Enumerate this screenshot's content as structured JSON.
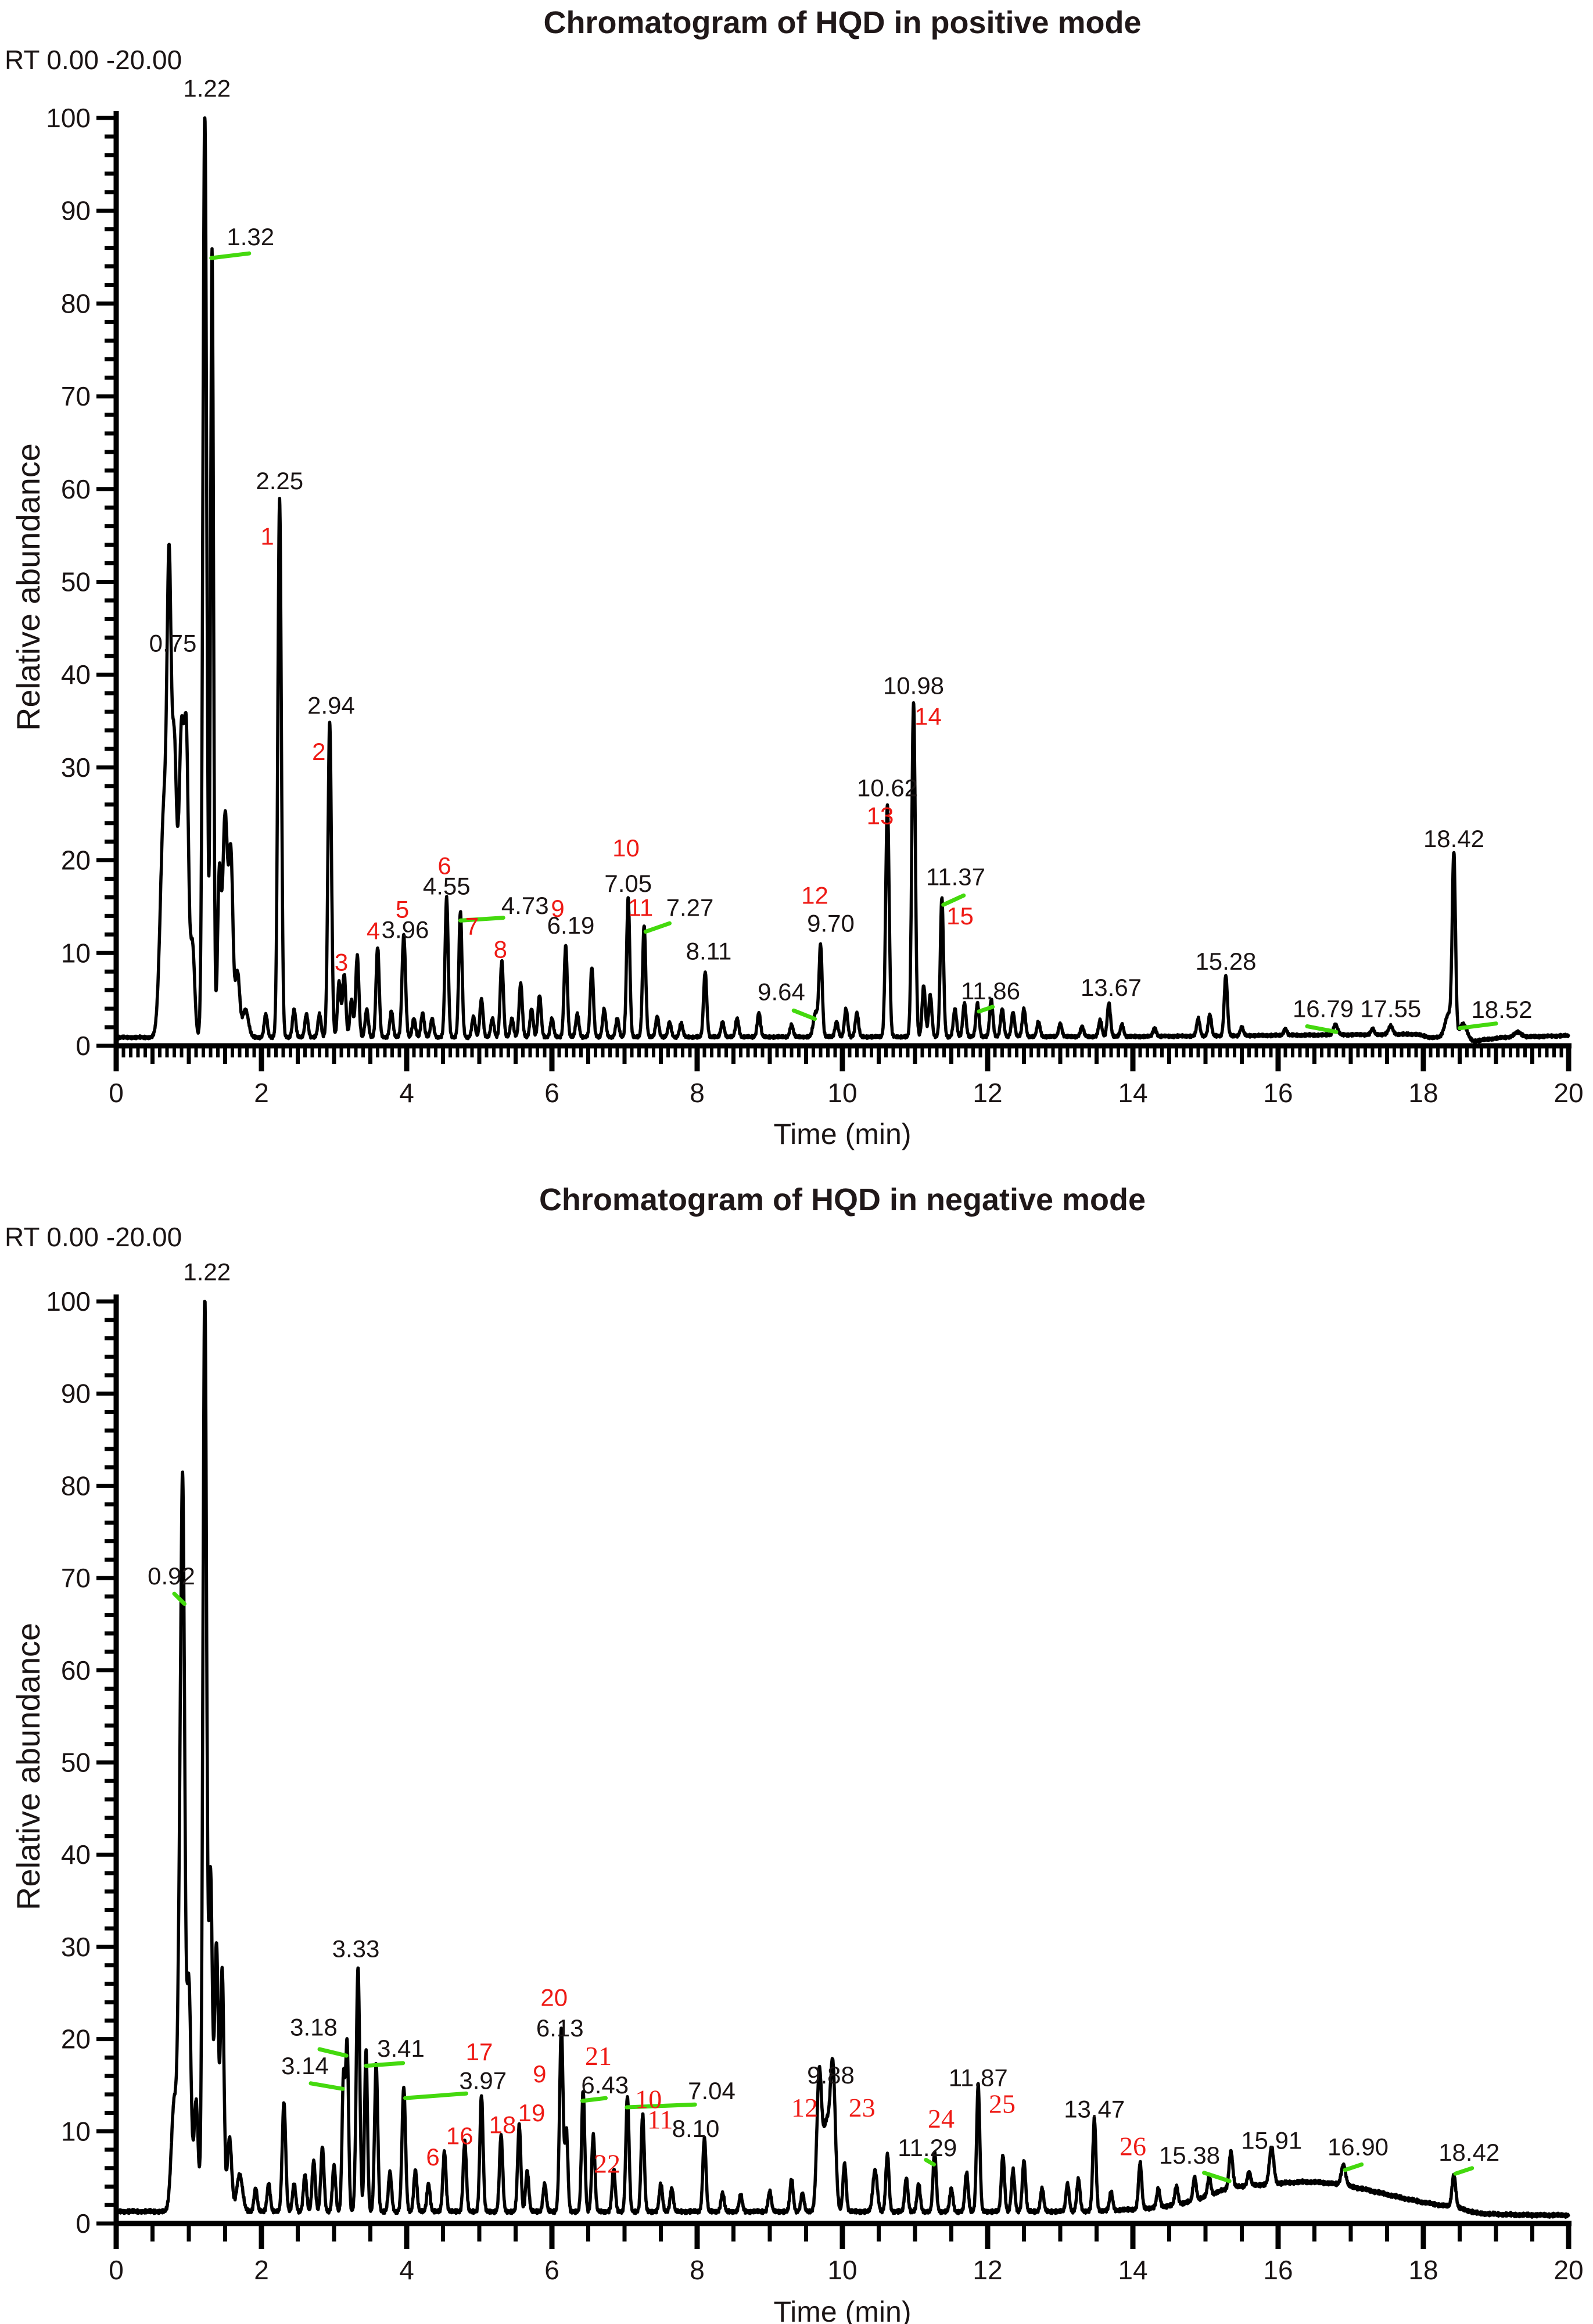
{
  "colors": {
    "trace": "#000000",
    "axis": "#000000",
    "text": "#1a1414",
    "peak_number_red": "#ee1a15",
    "green_leader": "#44d90e"
  },
  "chart_data": [
    {
      "type": "line",
      "id": "positive-mode",
      "title": "Chromatogram of HQD in positive mode",
      "range_label": "RT 0.00 -20.00",
      "xlabel": "Time (min)",
      "ylabel": "Relative abundance",
      "xlim": [
        0,
        20
      ],
      "ylim": [
        0,
        100
      ],
      "xticks": [
        0,
        2,
        4,
        6,
        8,
        10,
        12,
        14,
        16,
        18,
        20
      ],
      "yticks": [
        0,
        10,
        20,
        30,
        40,
        50,
        60,
        70,
        80,
        90,
        100
      ],
      "grid": false,
      "noise": 0.22,
      "seed": 3.1,
      "baseline": [
        [
          0,
          0.9
        ],
        [
          14,
          1.0
        ],
        [
          17.9,
          1.25
        ],
        [
          18.1,
          0.9
        ],
        [
          18.5,
          0.85
        ],
        [
          18.68,
          0.5
        ],
        [
          19.1,
          0.9
        ],
        [
          20,
          1.1
        ]
      ],
      "humps": [],
      "peaks": [
        [
          0.66,
          25,
          0.05
        ],
        [
          0.73,
          41,
          0.028
        ],
        [
          0.8,
          30,
          0.032
        ],
        [
          0.9,
          33,
          0.038
        ],
        [
          0.97,
          27,
          0.028
        ],
        [
          1.05,
          10,
          0.03
        ],
        [
          1.22,
          100,
          0.026
        ],
        [
          1.32,
          85,
          0.02
        ],
        [
          1.42,
          17,
          0.024
        ],
        [
          1.5,
          24,
          0.034
        ],
        [
          1.58,
          19,
          0.028
        ],
        [
          1.67,
          7,
          0.03
        ],
        [
          1.78,
          3,
          0.04
        ],
        [
          2.06,
          2.5
        ],
        [
          2.25,
          58,
          0.024
        ],
        [
          2.45,
          3
        ],
        [
          2.62,
          2.5
        ],
        [
          2.8,
          2.5
        ],
        [
          2.94,
          34,
          0.024
        ],
        [
          3.07,
          6
        ],
        [
          3.14,
          6.8
        ],
        [
          3.24,
          4
        ],
        [
          3.32,
          8.8
        ],
        [
          3.45,
          3
        ],
        [
          3.6,
          9.7
        ],
        [
          3.79,
          2.8
        ],
        [
          3.96,
          11,
          0.024
        ],
        [
          4.1,
          2
        ],
        [
          4.22,
          2.6
        ],
        [
          4.35,
          2
        ],
        [
          4.55,
          15,
          0.022
        ],
        [
          4.74,
          13.5,
          0.022
        ],
        [
          4.92,
          2.2
        ],
        [
          5.03,
          4.1
        ],
        [
          5.18,
          2
        ],
        [
          5.31,
          8.2
        ],
        [
          5.45,
          2
        ],
        [
          5.57,
          5.8
        ],
        [
          5.72,
          3
        ],
        [
          5.83,
          4.5
        ],
        [
          6.0,
          2
        ],
        [
          6.19,
          9.8
        ],
        [
          6.35,
          2.5
        ],
        [
          6.55,
          7.5
        ],
        [
          6.72,
          3
        ],
        [
          6.9,
          2
        ],
        [
          7.05,
          15
        ],
        [
          7.27,
          12
        ],
        [
          7.45,
          2.2
        ],
        [
          7.62,
          1.6
        ],
        [
          7.78,
          1.5
        ],
        [
          8.11,
          7
        ],
        [
          8.35,
          1.6
        ],
        [
          8.55,
          2
        ],
        [
          8.85,
          2.6
        ],
        [
          9.3,
          1.3
        ],
        [
          9.63,
          2.6,
          0.03
        ],
        [
          9.7,
          9.8
        ],
        [
          9.92,
          1.6
        ],
        [
          10.05,
          3
        ],
        [
          10.2,
          2.6
        ],
        [
          10.62,
          25,
          0.024
        ],
        [
          10.98,
          36,
          0.024
        ],
        [
          11.12,
          5.5
        ],
        [
          11.21,
          4.5
        ],
        [
          11.37,
          15
        ],
        [
          11.55,
          3
        ],
        [
          11.68,
          3.6
        ],
        [
          11.86,
          3.6
        ],
        [
          12.05,
          4
        ],
        [
          12.2,
          3
        ],
        [
          12.35,
          2.6
        ],
        [
          12.5,
          3
        ],
        [
          12.7,
          1.6
        ],
        [
          13.0,
          1.4
        ],
        [
          13.3,
          1.1
        ],
        [
          13.55,
          1.8
        ],
        [
          13.67,
          3.6
        ],
        [
          13.85,
          1.3
        ],
        [
          14.3,
          0.9
        ],
        [
          14.9,
          1.9
        ],
        [
          15.06,
          2.3
        ],
        [
          15.28,
          6.5
        ],
        [
          15.5,
          0.9
        ],
        [
          16.1,
          0.7
        ],
        [
          16.79,
          1.1,
          0.03
        ],
        [
          17.3,
          0.6
        ],
        [
          17.55,
          0.9,
          0.03
        ],
        [
          18.35,
          2.6,
          0.05
        ],
        [
          18.42,
          19,
          0.022
        ],
        [
          18.55,
          1.6,
          0.05
        ],
        [
          19.3,
          0.5,
          0.05
        ]
      ],
      "labels": [
        [
          0.78,
          42.5,
          "0.75"
        ],
        [
          1.25,
          102.3,
          "1.22"
        ],
        [
          1.85,
          86.3,
          "1.32"
        ],
        [
          2.25,
          60,
          "2.25"
        ],
        [
          2.96,
          35.8,
          "2.94"
        ],
        [
          3.98,
          11.6,
          "3.96"
        ],
        [
          4.55,
          16.3,
          "4.55"
        ],
        [
          5.63,
          14.2,
          "4.73"
        ],
        [
          6.26,
          12.1,
          "6.19"
        ],
        [
          7.05,
          16.6,
          "7.05"
        ],
        [
          7.9,
          14,
          "7.27"
        ],
        [
          8.16,
          9.3,
          "8.11"
        ],
        [
          9.16,
          4.9,
          "9.64"
        ],
        [
          9.84,
          12.3,
          "9.70"
        ],
        [
          10.62,
          26.9,
          "10.62"
        ],
        [
          10.98,
          37.9,
          "10.98"
        ],
        [
          11.56,
          17.3,
          "11.37"
        ],
        [
          12.04,
          5.0,
          "11.86"
        ],
        [
          13.7,
          5.4,
          "13.67"
        ],
        [
          15.28,
          8.2,
          "15.28"
        ],
        [
          16.62,
          3.1,
          "16.79"
        ],
        [
          17.55,
          3.1,
          "17.55"
        ],
        [
          18.42,
          21.4,
          "18.42"
        ],
        [
          19.08,
          3.0,
          "18.52"
        ]
      ],
      "numbers": [
        [
          2.08,
          54,
          "1",
          0
        ],
        [
          2.79,
          30.8,
          "2",
          0
        ],
        [
          3.1,
          8.1,
          "3",
          0
        ],
        [
          3.54,
          11.5,
          "4",
          0
        ],
        [
          3.94,
          13.8,
          "5",
          0
        ],
        [
          4.52,
          18.5,
          "6",
          0
        ],
        [
          4.9,
          12.0,
          "7",
          0
        ],
        [
          5.29,
          9.5,
          "8",
          0
        ],
        [
          6.08,
          13.9,
          "9",
          0
        ],
        [
          7.02,
          20.4,
          "10",
          0
        ],
        [
          7.22,
          14.0,
          "11",
          0
        ],
        [
          9.62,
          15.3,
          "12",
          0
        ],
        [
          10.52,
          23.9,
          "13",
          0
        ],
        [
          11.18,
          34.6,
          "14",
          0
        ],
        [
          11.62,
          13.1,
          "15",
          0
        ]
      ],
      "glines": [
        [
          1.31,
          84.9,
          1.83,
          85.4
        ],
        [
          4.74,
          13.5,
          5.33,
          13.8
        ],
        [
          7.29,
          12.3,
          7.62,
          13.2
        ],
        [
          9.33,
          3.8,
          9.62,
          2.9
        ],
        [
          11.39,
          15.2,
          11.67,
          16.2
        ],
        [
          11.88,
          3.7,
          12.07,
          4.2
        ],
        [
          16.4,
          2.1,
          16.8,
          1.5
        ],
        [
          18.5,
          1.9,
          19.0,
          2.4
        ]
      ]
    },
    {
      "type": "line",
      "id": "negative-mode",
      "title": "Chromatogram of HQD in negative mode",
      "range_label": "RT 0.00 -20.00",
      "xlabel": "Time (min)",
      "ylabel": "Relative abundance",
      "xlim": [
        0,
        20
      ],
      "ylim": [
        0,
        100
      ],
      "xticks": [
        0,
        2,
        4,
        6,
        8,
        10,
        12,
        14,
        16,
        18,
        20
      ],
      "yticks": [
        0,
        10,
        20,
        30,
        40,
        50,
        60,
        70,
        80,
        90,
        100
      ],
      "grid": false,
      "noise": 0.3,
      "seed": 7.7,
      "baseline": [
        [
          0,
          1.3
        ],
        [
          18.45,
          1.3
        ],
        [
          18.75,
          0.85
        ],
        [
          20,
          0.9
        ]
      ],
      "humps": [
        [
          16.4,
          3.2,
          1.05
        ],
        [
          15.35,
          0.6,
          0.3
        ]
      ],
      "peaks": [
        [
          0.8,
          12,
          0.04
        ],
        [
          0.88,
          30,
          0.028
        ],
        [
          0.92,
          67,
          0.026
        ],
        [
          1.0,
          25,
          0.03
        ],
        [
          1.1,
          12,
          0.028
        ],
        [
          1.22,
          100,
          0.026
        ],
        [
          1.3,
          36,
          0.024
        ],
        [
          1.38,
          29,
          0.027
        ],
        [
          1.46,
          26,
          0.024
        ],
        [
          1.56,
          8,
          0.03
        ],
        [
          1.7,
          4,
          0.04
        ],
        [
          1.92,
          2.5
        ],
        [
          2.1,
          3
        ],
        [
          2.31,
          11.8,
          0.024
        ],
        [
          2.45,
          3
        ],
        [
          2.6,
          4
        ],
        [
          2.72,
          5.5
        ],
        [
          2.84,
          7
        ],
        [
          3.0,
          5
        ],
        [
          3.13,
          14.5,
          0.02
        ],
        [
          3.18,
          18,
          0.02
        ],
        [
          3.33,
          26.5,
          0.024
        ],
        [
          3.44,
          17.5,
          0.02
        ],
        [
          3.58,
          16,
          0.022
        ],
        [
          3.77,
          4.3
        ],
        [
          3.96,
          13.5,
          0.024
        ],
        [
          4.12,
          4.5
        ],
        [
          4.3,
          3
        ],
        [
          4.52,
          6.5
        ],
        [
          4.8,
          7.6
        ],
        [
          5.03,
          12.6,
          0.022
        ],
        [
          5.3,
          8.3
        ],
        [
          5.55,
          9.4
        ],
        [
          5.66,
          4.4
        ],
        [
          5.9,
          3
        ],
        [
          6.13,
          20,
          0.024
        ],
        [
          6.2,
          8.7,
          0.02
        ],
        [
          6.43,
          13.1,
          0.022
        ],
        [
          6.57,
          8.3
        ],
        [
          6.85,
          4.6
        ],
        [
          7.04,
          12.5,
          0.022
        ],
        [
          7.25,
          10.5,
          0.022
        ],
        [
          7.5,
          3
        ],
        [
          7.65,
          2.5
        ],
        [
          8.1,
          8,
          0.022
        ],
        [
          8.35,
          2
        ],
        [
          8.6,
          1.8
        ],
        [
          9.0,
          2.2
        ],
        [
          9.3,
          3.5
        ],
        [
          9.45,
          2
        ],
        [
          9.68,
          14.3,
          0.032
        ],
        [
          9.78,
          9.5,
          0.05
        ],
        [
          9.87,
          14.5,
          0.034
        ],
        [
          10.03,
          5.2
        ],
        [
          10.45,
          4.5,
          0.03
        ],
        [
          10.62,
          6.2
        ],
        [
          10.88,
          3.6
        ],
        [
          11.05,
          3
        ],
        [
          11.27,
          6.5
        ],
        [
          11.5,
          2.5
        ],
        [
          11.71,
          4.2
        ],
        [
          11.87,
          13.7,
          0.022
        ],
        [
          12.21,
          6.1
        ],
        [
          12.35,
          4.5
        ],
        [
          12.5,
          5.5
        ],
        [
          12.75,
          2.5
        ],
        [
          13.1,
          3
        ],
        [
          13.25,
          3.5
        ],
        [
          13.47,
          10,
          0.022
        ],
        [
          13.7,
          2
        ],
        [
          14.1,
          5
        ],
        [
          14.35,
          2
        ],
        [
          14.6,
          2
        ],
        [
          14.85,
          2.5
        ],
        [
          15.05,
          2
        ],
        [
          15.35,
          4,
          0.025
        ],
        [
          15.6,
          1.5
        ],
        [
          15.91,
          4,
          0.03
        ],
        [
          16.9,
          2.2,
          0.03
        ],
        [
          18.42,
          3.5,
          0.025
        ]
      ],
      "labels": [
        [
          0.76,
          69.3,
          "0.92"
        ],
        [
          1.25,
          102.3,
          "1.22"
        ],
        [
          2.6,
          16.2,
          "3.14"
        ],
        [
          2.72,
          20.4,
          "3.18"
        ],
        [
          3.3,
          28.9,
          "3.33"
        ],
        [
          3.92,
          18.1,
          "3.41"
        ],
        [
          5.05,
          14.6,
          "3.97"
        ],
        [
          6.11,
          20.3,
          "6.13"
        ],
        [
          6.73,
          14.1,
          "6.43"
        ],
        [
          8.2,
          13.5,
          "7.04"
        ],
        [
          7.98,
          9.4,
          "8.10"
        ],
        [
          9.84,
          15.2,
          "9.88"
        ],
        [
          11.17,
          7.3,
          "11.29"
        ],
        [
          11.87,
          14.9,
          "11.87"
        ],
        [
          13.47,
          11.5,
          "13.47"
        ],
        [
          14.78,
          6.5,
          "15.38"
        ],
        [
          15.91,
          8.1,
          "15.91"
        ],
        [
          17.1,
          7.4,
          "16.90"
        ],
        [
          18.63,
          6.8,
          "18.42"
        ]
      ],
      "numbers": [
        [
          5.0,
          17.7,
          "17",
          0
        ],
        [
          4.36,
          6.3,
          "6",
          0
        ],
        [
          4.73,
          8.6,
          "16",
          0
        ],
        [
          5.32,
          9.8,
          "18",
          0
        ],
        [
          5.72,
          11.1,
          "19",
          0
        ],
        [
          5.83,
          15.3,
          "9",
          0
        ],
        [
          6.03,
          23.6,
          "20",
          0
        ],
        [
          6.64,
          17.2,
          "21",
          1
        ],
        [
          6.76,
          5.5,
          "22",
          1
        ],
        [
          7.33,
          12.5,
          "10",
          1
        ],
        [
          7.49,
          10.3,
          "11",
          1
        ],
        [
          9.48,
          11.6,
          "12",
          1
        ],
        [
          10.27,
          11.6,
          "23",
          1
        ],
        [
          11.36,
          10.4,
          "24",
          1
        ],
        [
          12.2,
          12.0,
          "25",
          1
        ],
        [
          14.0,
          7.4,
          "26",
          1
        ]
      ],
      "glines": [
        [
          0.8,
          68.3,
          0.94,
          67.2
        ],
        [
          2.68,
          15.2,
          3.12,
          14.6
        ],
        [
          2.8,
          18.9,
          3.17,
          18.2
        ],
        [
          3.44,
          17.1,
          3.95,
          17.4
        ],
        [
          3.98,
          13.6,
          4.82,
          14.1
        ],
        [
          6.42,
          13.3,
          6.74,
          13.6
        ],
        [
          7.03,
          12.6,
          7.97,
          12.9
        ],
        [
          11.15,
          6.9,
          11.26,
          6.4
        ],
        [
          14.98,
          5.5,
          15.33,
          4.6
        ],
        [
          16.92,
          5.8,
          17.15,
          6.4
        ],
        [
          18.44,
          5.4,
          18.67,
          6.0
        ]
      ]
    }
  ]
}
